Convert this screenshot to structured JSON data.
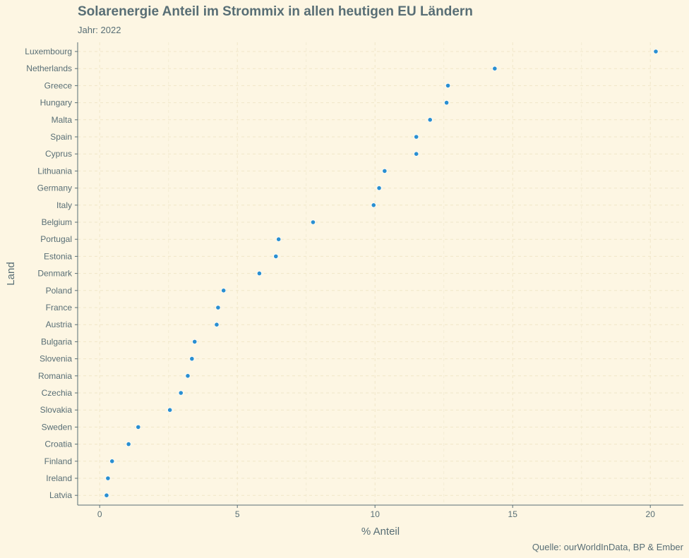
{
  "chart_data": {
    "type": "scatter",
    "title": "Solarenergie Anteil im Strommix in allen heutigen EU Ländern",
    "subtitle": "Jahr: 2022",
    "caption": "Quelle: ourWorldInData, BP & Ember",
    "xlabel": "% Anteil",
    "ylabel": "Land",
    "xlim": [
      -0.8,
      21.2
    ],
    "xticks": [
      0,
      5,
      10,
      15,
      20
    ],
    "grid": true,
    "point_color": "#2a8fd0",
    "categories": [
      "Luxembourg",
      "Netherlands",
      "Greece",
      "Hungary",
      "Malta",
      "Spain",
      "Cyprus",
      "Lithuania",
      "Germany",
      "Italy",
      "Belgium",
      "Portugal",
      "Estonia",
      "Denmark",
      "Poland",
      "France",
      "Austria",
      "Bulgaria",
      "Slovenia",
      "Romania",
      "Czechia",
      "Slovakia",
      "Sweden",
      "Croatia",
      "Finland",
      "Ireland",
      "Latvia"
    ],
    "values": [
      20.2,
      14.35,
      12.65,
      12.6,
      12.0,
      11.5,
      11.5,
      10.35,
      10.15,
      9.95,
      7.75,
      6.5,
      6.4,
      5.8,
      4.5,
      4.3,
      4.25,
      3.45,
      3.35,
      3.2,
      2.95,
      2.55,
      1.4,
      1.05,
      0.45,
      0.3,
      0.25
    ]
  }
}
